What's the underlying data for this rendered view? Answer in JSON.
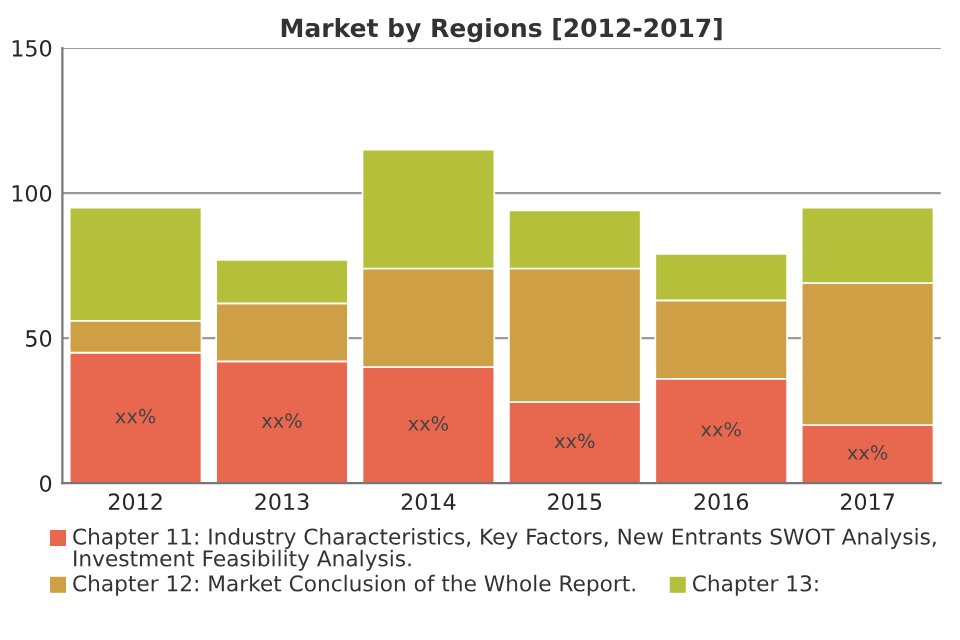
{
  "chart_data": {
    "type": "bar",
    "title": "Market by Regions [2012-2017]",
    "categories": [
      "2012",
      "2013",
      "2014",
      "2015",
      "2016",
      "2017"
    ],
    "stacked": true,
    "series": [
      {
        "name": "Chapter 11: Industry Characteristics, Key Factors, New Entrants SWOT Analysis, Investment Feasibility Analysis.",
        "color": "#e8674f",
        "values": [
          45,
          42,
          40,
          28,
          36,
          20
        ],
        "value_labels": [
          "xx%",
          "xx%",
          "xx%",
          "xx%",
          "xx%",
          "xx%"
        ]
      },
      {
        "name": "Chapter 12: Market Conclusion of the Whole Report.",
        "color": "#cf9f45",
        "values": [
          11,
          20,
          34,
          46,
          27,
          49
        ]
      },
      {
        "name": "Chapter 13:",
        "color": "#b5c03a",
        "values": [
          39,
          15,
          41,
          20,
          16,
          26
        ]
      }
    ],
    "ylim": [
      0,
      150
    ],
    "yticks": [
      0,
      50,
      100,
      150
    ],
    "grid": "y",
    "legend": "bottom"
  }
}
